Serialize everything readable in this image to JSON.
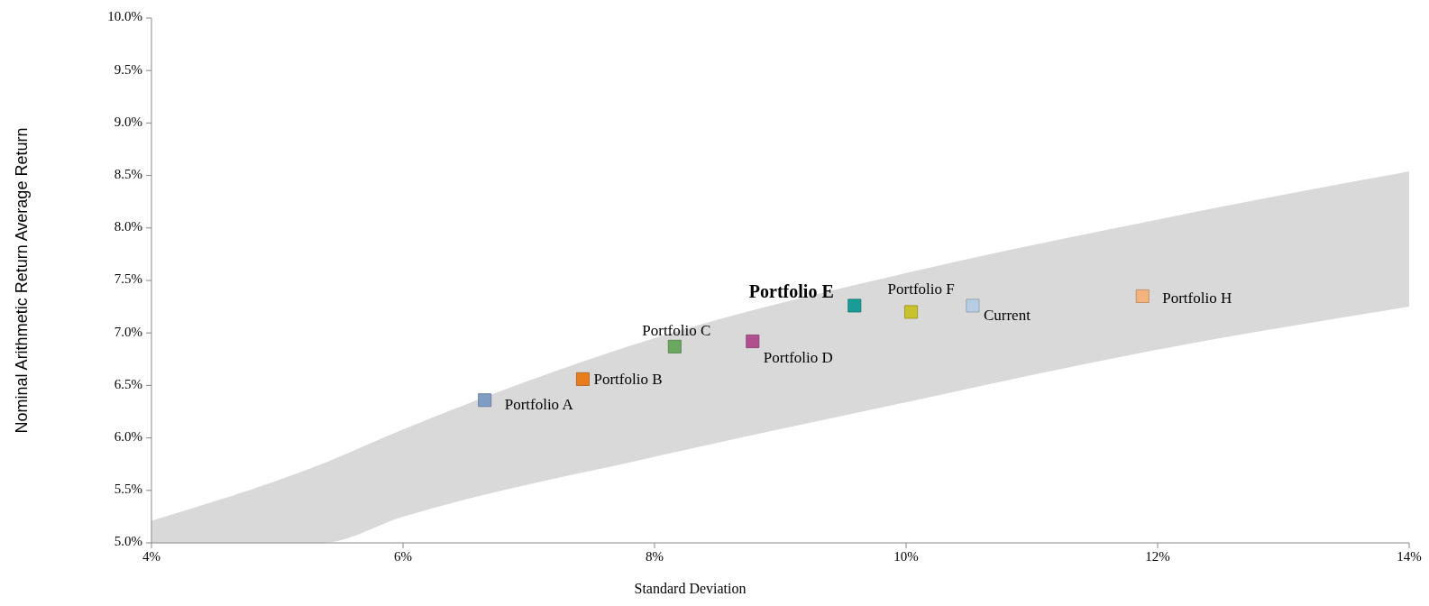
{
  "chart_data": {
    "type": "scatter",
    "xlabel": "Standard Deviation",
    "ylabel": "Nominal Arithmetic Return Average Return",
    "xlim": [
      4,
      14
    ],
    "ylim": [
      5,
      10
    ],
    "xticks": [
      {
        "value": 4,
        "label": "4%"
      },
      {
        "value": 6,
        "label": "6%"
      },
      {
        "value": 8,
        "label": "8%"
      },
      {
        "value": 10,
        "label": "10%"
      },
      {
        "value": 12,
        "label": "12%"
      },
      {
        "value": 14,
        "label": "14%"
      }
    ],
    "yticks": [
      {
        "value": 5,
        "label": "5.0%"
      },
      {
        "value": 5.5,
        "label": "5.5%"
      },
      {
        "value": 6,
        "label": "6.0%"
      },
      {
        "value": 6.5,
        "label": "6.5%"
      },
      {
        "value": 7,
        "label": "7.0%"
      },
      {
        "value": 7.5,
        "label": "7.5%"
      },
      {
        "value": 8,
        "label": "8.0%"
      },
      {
        "value": 8.5,
        "label": "8.5%"
      },
      {
        "value": 9,
        "label": "9.0%"
      },
      {
        "value": 9.5,
        "label": "9.5%"
      },
      {
        "value": 10,
        "label": "10.0%"
      }
    ],
    "grid": false,
    "legend": false,
    "marker": "square",
    "series": [
      {
        "type": "line",
        "color": "#d9d9d9",
        "x": [
          4,
          5.35,
          6,
          8,
          10,
          12,
          14
        ],
        "values": [
          null,
          null,
          null,
          null,
          null,
          null,
          null
        ],
        "lower": [
          5.0,
          5.0,
          5.25,
          5.82,
          6.34,
          6.84,
          7.25
        ],
        "upper": [
          5.21,
          5.75,
          6.08,
          6.95,
          7.57,
          8.08,
          8.54
        ]
      },
      {
        "name": "Portfolio A",
        "color": "#7f9cc4",
        "x": [
          6.65
        ],
        "values": [
          6.36
        ]
      },
      {
        "name": "Portfolio B",
        "color": "#e87d1e",
        "x": [
          7.43
        ],
        "values": [
          6.56
        ]
      },
      {
        "name": "Portfolio C",
        "color": "#6aa85f",
        "x": [
          8.16
        ],
        "values": [
          6.87
        ]
      },
      {
        "name": "Portfolio D",
        "color": "#b0508f",
        "x": [
          8.78
        ],
        "values": [
          6.92
        ]
      },
      {
        "name": "Portfolio E",
        "color": "#1a9c96",
        "x": [
          9.59
        ],
        "values": [
          7.26
        ]
      },
      {
        "name": "Portfolio F",
        "color": "#c8c22e",
        "x": [
          10.04
        ],
        "values": [
          7.2
        ]
      },
      {
        "name": "Current",
        "color": "#b7cde3",
        "x": [
          10.53
        ],
        "values": [
          7.26
        ]
      },
      {
        "name": "Portfolio H",
        "color": "#f4b27c",
        "x": [
          11.88
        ],
        "values": [
          7.35
        ]
      }
    ]
  }
}
